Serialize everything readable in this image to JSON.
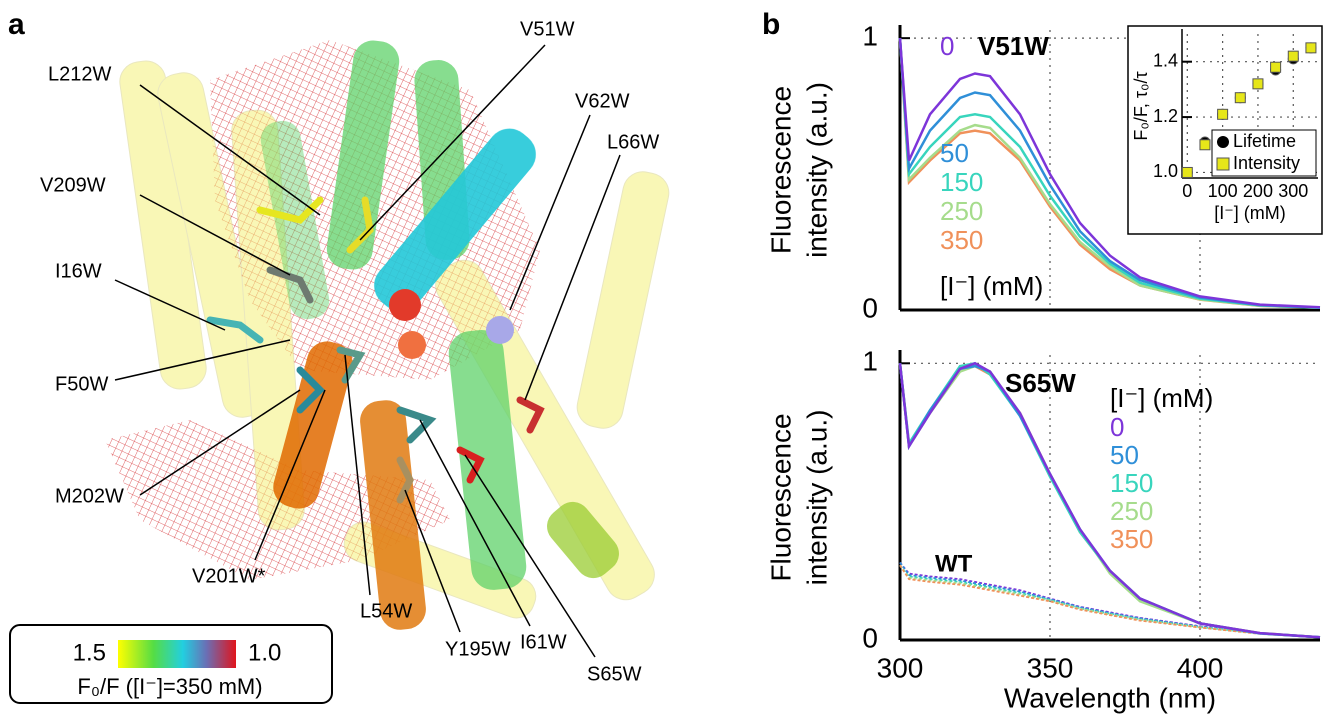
{
  "panel_a": {
    "letter": "a",
    "labels": [
      "L212W",
      "V51W",
      "V62W",
      "L66W",
      "V209W",
      "I16W",
      "F50W",
      "M202W",
      "V201W*",
      "L54W",
      "Y195W",
      "I61W",
      "S65W"
    ],
    "colorbar": {
      "ticks": [
        1.5,
        {
          "value": 1,
          "label": "1.0"
        }
      ],
      "caption": "F₀/F ([I⁻]=350 mM)"
    }
  },
  "panel_b": {
    "letter": "b"
  },
  "chart_data": [
    {
      "type": "line",
      "annotation": "V51W",
      "y_label": [
        "Fluorescence",
        "intensity (a.u.)"
      ],
      "legend_title": "[I⁻] (mM)",
      "x": [
        300,
        303,
        310,
        320,
        325,
        330,
        340,
        350,
        360,
        370,
        380,
        400,
        420,
        440
      ],
      "series": [
        {
          "name": "0",
          "color": "#7d35d9",
          "values": [
            1.0,
            0.55,
            0.72,
            0.85,
            0.87,
            0.86,
            0.72,
            0.5,
            0.32,
            0.2,
            0.12,
            0.05,
            0.02,
            0.01
          ]
        },
        {
          "name": "50",
          "color": "#2f8fd8",
          "values": [
            1.0,
            0.52,
            0.66,
            0.78,
            0.8,
            0.79,
            0.66,
            0.46,
            0.29,
            0.18,
            0.11,
            0.046,
            0.018,
            0.009
          ]
        },
        {
          "name": "150",
          "color": "#38d5bd",
          "values": [
            1.0,
            0.5,
            0.6,
            0.71,
            0.72,
            0.71,
            0.6,
            0.42,
            0.27,
            0.17,
            0.1,
            0.042,
            0.017,
            0.008
          ]
        },
        {
          "name": "250",
          "color": "#a6dc8c",
          "values": [
            1.0,
            0.48,
            0.56,
            0.66,
            0.68,
            0.67,
            0.56,
            0.39,
            0.25,
            0.16,
            0.09,
            0.039,
            0.016,
            0.008
          ]
        },
        {
          "name": "350",
          "color": "#f0915a",
          "values": [
            1.0,
            0.47,
            0.55,
            0.65,
            0.66,
            0.65,
            0.55,
            0.38,
            0.24,
            0.15,
            0.09,
            0.038,
            0.015,
            0.008
          ]
        }
      ],
      "xlim": [
        300,
        440
      ],
      "ylim": [
        0,
        1.03
      ],
      "xticks": [
        300,
        350,
        400
      ],
      "yticks": [
        0,
        1
      ],
      "show_xtick_labels": false,
      "grid": true
    },
    {
      "type": "scatter",
      "y_label": "F₀/F, τ₀/τ",
      "x_label": "[I⁻] (mM)",
      "x": [
        0,
        50,
        100,
        150,
        200,
        250,
        300,
        350
      ],
      "series": [
        {
          "name": "Lifetime",
          "color": "#000000",
          "marker": "circle",
          "values": [
            1.0,
            1.11,
            1.21,
            1.27,
            1.32,
            1.37,
            1.41,
            1.45
          ]
        },
        {
          "name": "Intensity",
          "color": "#e6e619",
          "marker": "square",
          "values": [
            1.0,
            1.1,
            1.21,
            1.27,
            1.32,
            1.38,
            1.42,
            1.45
          ]
        }
      ],
      "xlim": [
        -15,
        370
      ],
      "ylim": [
        0.98,
        1.5
      ],
      "xticks": [
        0,
        100,
        200,
        300
      ],
      "yticks": [
        {
          "value": 1,
          "label": "1.0"
        },
        1.2,
        1.4
      ],
      "legend": "lower right",
      "grid": true
    },
    {
      "type": "line",
      "annotation": "S65W",
      "wt_annotation": "WT",
      "y_label": [
        "Fluorescence",
        "intensity (a.u.)"
      ],
      "x_label": "Wavelength (nm)",
      "legend_title": "[I⁻] (mM)",
      "x": [
        300,
        303,
        310,
        320,
        325,
        330,
        340,
        350,
        360,
        370,
        380,
        400,
        420,
        440
      ],
      "series": [
        {
          "name": "0",
          "color": "#7d35d9",
          "values": [
            1.0,
            0.7,
            0.82,
            0.98,
            1.0,
            0.97,
            0.82,
            0.6,
            0.4,
            0.25,
            0.15,
            0.06,
            0.025,
            0.01
          ]
        },
        {
          "name": "50",
          "color": "#2f8fd8",
          "values": [
            1.0,
            0.7,
            0.83,
            0.98,
            0.99,
            0.97,
            0.81,
            0.6,
            0.4,
            0.25,
            0.15,
            0.06,
            0.024,
            0.01
          ]
        },
        {
          "name": "150",
          "color": "#38d5bd",
          "values": [
            1.0,
            0.71,
            0.83,
            0.99,
            1.0,
            0.96,
            0.81,
            0.59,
            0.39,
            0.25,
            0.15,
            0.06,
            0.024,
            0.01
          ]
        },
        {
          "name": "250",
          "color": "#a6dc8c",
          "values": [
            1.0,
            0.7,
            0.82,
            0.97,
            0.99,
            0.97,
            0.82,
            0.6,
            0.4,
            0.24,
            0.14,
            0.06,
            0.025,
            0.01
          ]
        },
        {
          "name": "350",
          "color": "#f0915a",
          "values": [
            1.0,
            0.71,
            0.82,
            0.98,
            0.99,
            0.96,
            0.82,
            0.6,
            0.39,
            0.25,
            0.15,
            0.06,
            0.025,
            0.01
          ]
        }
      ],
      "wt_series": [
        {
          "color": "#7d35d9",
          "values": [
            0.28,
            0.24,
            0.23,
            0.22,
            0.21,
            0.2,
            0.18,
            0.15,
            0.12,
            0.1,
            0.08,
            0.05,
            0.025,
            0.01
          ]
        },
        {
          "color": "#2f8fd8",
          "values": [
            0.28,
            0.235,
            0.225,
            0.215,
            0.205,
            0.195,
            0.175,
            0.147,
            0.118,
            0.097,
            0.078,
            0.048,
            0.024,
            0.01
          ]
        },
        {
          "color": "#38d5bd",
          "values": [
            0.27,
            0.23,
            0.22,
            0.21,
            0.2,
            0.19,
            0.17,
            0.145,
            0.115,
            0.095,
            0.075,
            0.047,
            0.023,
            0.009
          ]
        },
        {
          "color": "#a6dc8c",
          "values": [
            0.27,
            0.225,
            0.215,
            0.205,
            0.195,
            0.185,
            0.165,
            0.142,
            0.113,
            0.092,
            0.073,
            0.046,
            0.023,
            0.009
          ]
        },
        {
          "color": "#f0915a",
          "values": [
            0.27,
            0.22,
            0.21,
            0.2,
            0.19,
            0.18,
            0.16,
            0.14,
            0.11,
            0.09,
            0.07,
            0.045,
            0.022,
            0.009
          ]
        }
      ],
      "xlim": [
        300,
        440
      ],
      "ylim": [
        0,
        1.03
      ],
      "xticks": [
        300,
        350,
        400
      ],
      "yticks": [
        0,
        1
      ],
      "show_xtick_labels": true,
      "grid": true
    }
  ]
}
